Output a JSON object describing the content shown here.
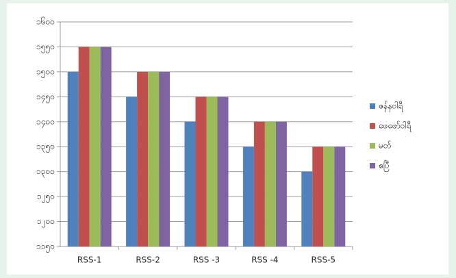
{
  "chart_data": {
    "type": "bar",
    "categories": [
      "RSS-1",
      "RSS-2",
      "RSS -3",
      "RSS -4",
      "RSS-5"
    ],
    "series": [
      {
        "name": "ဇန်နဝါရီ",
        "color": "#4f81bd",
        "values": [
          1500,
          1450,
          1400,
          1350,
          1300
        ]
      },
      {
        "name": "ဖေဖော်ဝါရီ",
        "color": "#c0504d",
        "values": [
          1550,
          1500,
          1450,
          1400,
          1350
        ]
      },
      {
        "name": "မတ်",
        "color": "#9bbb59",
        "values": [
          1550,
          1500,
          1450,
          1400,
          1350
        ]
      },
      {
        "name": "ဧပြီ",
        "color": "#8064a2",
        "values": [
          1550,
          1500,
          1450,
          1400,
          1350
        ]
      }
    ],
    "ylim": [
      1150,
      1600
    ],
    "yticks": [
      {
        "value": 1150,
        "label": "၁၁၅၀"
      },
      {
        "value": 1200,
        "label": "၁၂၀၀"
      },
      {
        "value": 1250,
        "label": "၁၂၅၀"
      },
      {
        "value": 1300,
        "label": "၁၃၀၀"
      },
      {
        "value": 1350,
        "label": "၁၃၅၀"
      },
      {
        "value": 1400,
        "label": "၁၄၀၀"
      },
      {
        "value": 1450,
        "label": "၁၄၅၀"
      },
      {
        "value": 1500,
        "label": "၁၅၀၀"
      },
      {
        "value": 1550,
        "label": "၁၅၅၀"
      },
      {
        "value": 1600,
        "label": "၁၆၀၀"
      }
    ],
    "grid": true,
    "legend": "right"
  }
}
